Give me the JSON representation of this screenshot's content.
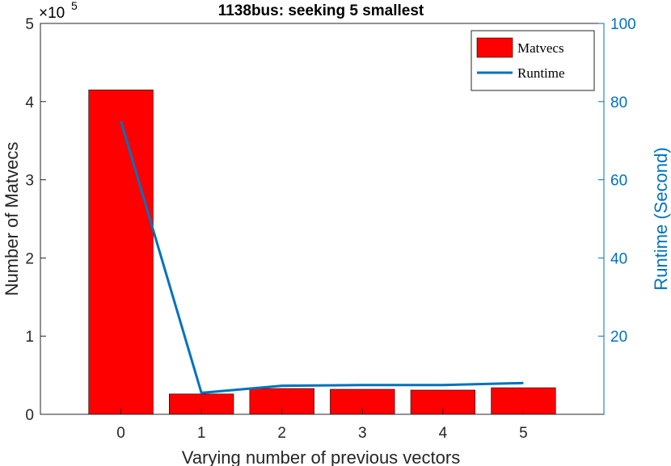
{
  "chart_data": {
    "type": "bar",
    "title": "1138bus: seeking 5 smallest",
    "xlabel": "Varying number of previous vectors",
    "ylabel": "Number of Matvecs",
    "y2label": "Runtime (Second)",
    "y_multiplier_label": "×10",
    "y_multiplier_exponent": "5",
    "categories": [
      "0",
      "1",
      "2",
      "3",
      "4",
      "5"
    ],
    "ylim": [
      0,
      5
    ],
    "y_ticks": [
      "0",
      "1",
      "2",
      "3",
      "4",
      "5"
    ],
    "y2lim": [
      0,
      100
    ],
    "y2_ticks": [
      "20",
      "40",
      "60",
      "80",
      "100"
    ],
    "series": [
      {
        "name": "Matvecs",
        "kind": "bar",
        "axis": "left",
        "values": [
          4.15,
          0.26,
          0.33,
          0.32,
          0.31,
          0.34
        ],
        "color": "#ff0000"
      },
      {
        "name": "Runtime",
        "kind": "line",
        "axis": "right",
        "values": [
          75,
          5.5,
          7.3,
          7.5,
          7.5,
          8.0
        ],
        "color": "#0072bd"
      }
    ],
    "legend": "top-right",
    "grid": false
  }
}
